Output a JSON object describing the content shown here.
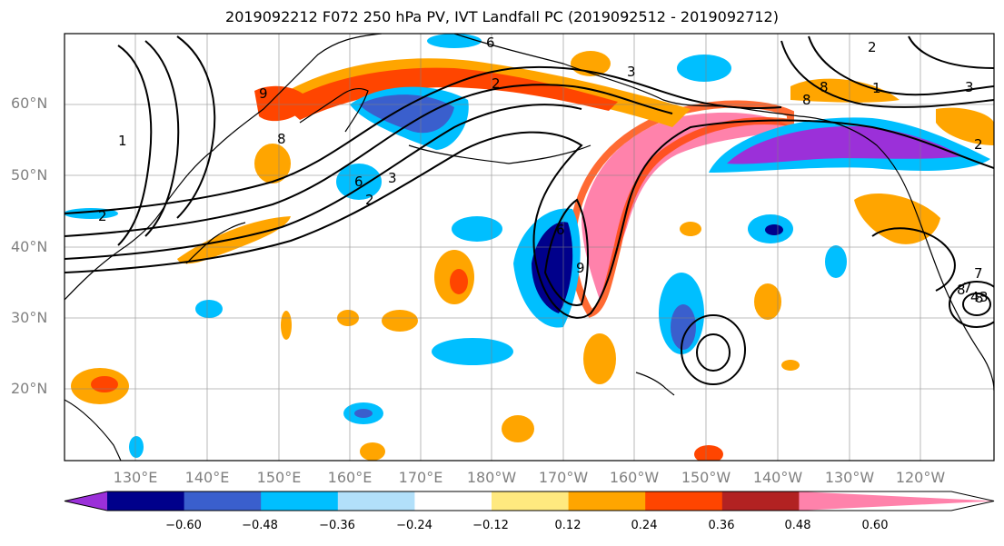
{
  "title": "2019092212 F072 250 hPa PV, IVT Landfall PC (2019092512 - 2019092712)",
  "axes": {
    "lat_labels": [
      "60°N",
      "50°N",
      "40°N",
      "30°N",
      "20°N"
    ],
    "lon_labels": [
      "130°E",
      "140°E",
      "150°E",
      "160°E",
      "170°E",
      "180°W",
      "170°W",
      "160°W",
      "150°W",
      "140°W",
      "130°W",
      "120°W"
    ]
  },
  "contour_labels": [
    "6",
    "3",
    "2",
    "9",
    "8",
    "1",
    "2",
    "6",
    "2",
    "3",
    "6",
    "9",
    "8",
    "1",
    "8",
    "2",
    "3",
    "2",
    "8",
    "7",
    "3",
    "4",
    "8",
    "7"
  ],
  "colorbar": {
    "ticks": [
      "−0.60",
      "−0.48",
      "−0.36",
      "−0.24",
      "−0.12",
      "0.12",
      "0.24",
      "0.36",
      "0.48",
      "0.60"
    ],
    "colors": [
      "#9b30d9",
      "#00008b",
      "#3a5fcd",
      "#00bfff",
      "#b2e0fa",
      "#ffffff",
      "#ffe97f",
      "#ffa500",
      "#ff4500",
      "#b22222",
      "#ff82ab"
    ]
  }
}
